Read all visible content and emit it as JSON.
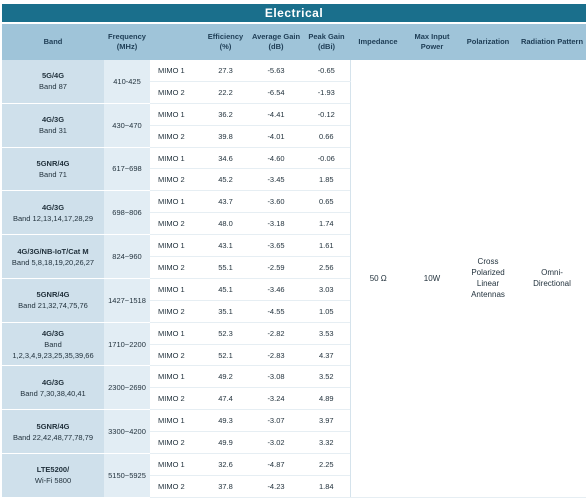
{
  "title": "Electrical",
  "headers": {
    "band": "Band",
    "frequency": [
      "Frequency",
      "(MHz)"
    ],
    "mimo": "",
    "efficiency": [
      "Efficiency",
      "(%)"
    ],
    "avg_gain": [
      "Average Gain",
      "(dB)"
    ],
    "peak_gain": [
      "Peak Gain",
      "(dBi)"
    ],
    "impedance": "Impedance",
    "max_input_power": [
      "Max Input",
      "Power"
    ],
    "polarization": "Polarization",
    "radiation_pattern": "Radiation Pattern"
  },
  "shared": {
    "impedance": "50 Ω",
    "max_input_power": "10W",
    "polarization": [
      "Cross",
      "Polarized",
      "Linear",
      "Antennas"
    ],
    "radiation_pattern": [
      "Omni-",
      "Directional"
    ]
  },
  "rows": [
    {
      "band": [
        "5G/4G",
        "Band 87"
      ],
      "freq": "410-425",
      "mimo": [
        {
          "label": "MIMO 1",
          "eff": "27.3",
          "avg": "-5.63",
          "peak": "-0.65"
        },
        {
          "label": "MIMO 2",
          "eff": "22.2",
          "avg": "-6.54",
          "peak": "-1.93"
        }
      ]
    },
    {
      "band": [
        "4G/3G",
        "Band 31"
      ],
      "freq": "430~470",
      "mimo": [
        {
          "label": "MIMO 1",
          "eff": "36.2",
          "avg": "-4.41",
          "peak": "-0.12"
        },
        {
          "label": "MIMO 2",
          "eff": "39.8",
          "avg": "-4.01",
          "peak": "0.66"
        }
      ]
    },
    {
      "band": [
        "5GNR/4G",
        "Band 71"
      ],
      "freq": "617~698",
      "mimo": [
        {
          "label": "MIMO 1",
          "eff": "34.6",
          "avg": "-4.60",
          "peak": "-0.06"
        },
        {
          "label": "MIMO 2",
          "eff": "45.2",
          "avg": "-3.45",
          "peak": "1.85"
        }
      ]
    },
    {
      "band": [
        "4G/3G",
        "Band 12,13,14,17,28,29"
      ],
      "freq": "698~806",
      "mimo": [
        {
          "label": "MIMO 1",
          "eff": "43.7",
          "avg": "-3.60",
          "peak": "0.65"
        },
        {
          "label": "MIMO 2",
          "eff": "48.0",
          "avg": "-3.18",
          "peak": "1.74"
        }
      ]
    },
    {
      "band": [
        "4G/3G/NB-IoT/Cat M",
        "Band 5,8,18,19,20,26,27"
      ],
      "freq": "824~960",
      "mimo": [
        {
          "label": "MIMO 1",
          "eff": "43.1",
          "avg": "-3.65",
          "peak": "1.61"
        },
        {
          "label": "MIMO 2",
          "eff": "55.1",
          "avg": "-2.59",
          "peak": "2.56"
        }
      ]
    },
    {
      "band": [
        "5GNR/4G",
        "Band 21,32,74,75,76"
      ],
      "freq": "1427~1518",
      "mimo": [
        {
          "label": "MIMO 1",
          "eff": "45.1",
          "avg": "-3.46",
          "peak": "3.03"
        },
        {
          "label": "MIMO 2",
          "eff": "35.1",
          "avg": "-4.55",
          "peak": "1.05"
        }
      ]
    },
    {
      "band": [
        "4G/3G",
        "Band",
        "1,2,3,4,9,23,25,35,39,66"
      ],
      "freq": "1710~2200",
      "mimo": [
        {
          "label": "MIMO 1",
          "eff": "52.3",
          "avg": "-2.82",
          "peak": "3.53"
        },
        {
          "label": "MIMO 2",
          "eff": "52.1",
          "avg": "-2.83",
          "peak": "4.37"
        }
      ]
    },
    {
      "band": [
        "4G/3G",
        "Band 7,30,38,40,41"
      ],
      "freq": "2300~2690",
      "mimo": [
        {
          "label": "MIMO 1",
          "eff": "49.2",
          "avg": "-3.08",
          "peak": "3.52"
        },
        {
          "label": "MIMO 2",
          "eff": "47.4",
          "avg": "-3.24",
          "peak": "4.89"
        }
      ]
    },
    {
      "band": [
        "5GNR/4G",
        "Band 22,42,48,77,78,79"
      ],
      "freq": "3300~4200",
      "mimo": [
        {
          "label": "MIMO 1",
          "eff": "49.3",
          "avg": "-3.07",
          "peak": "3.97"
        },
        {
          "label": "MIMO 2",
          "eff": "49.9",
          "avg": "-3.02",
          "peak": "3.32"
        }
      ]
    },
    {
      "band": [
        "LTE5200/",
        "Wi-Fi 5800"
      ],
      "freq": "5150~5925",
      "mimo": [
        {
          "label": "MIMO 1",
          "eff": "32.6",
          "avg": "-4.87",
          "peak": "2.25"
        },
        {
          "label": "MIMO 2",
          "eff": "37.8",
          "avg": "-4.23",
          "peak": "1.84"
        }
      ]
    }
  ]
}
